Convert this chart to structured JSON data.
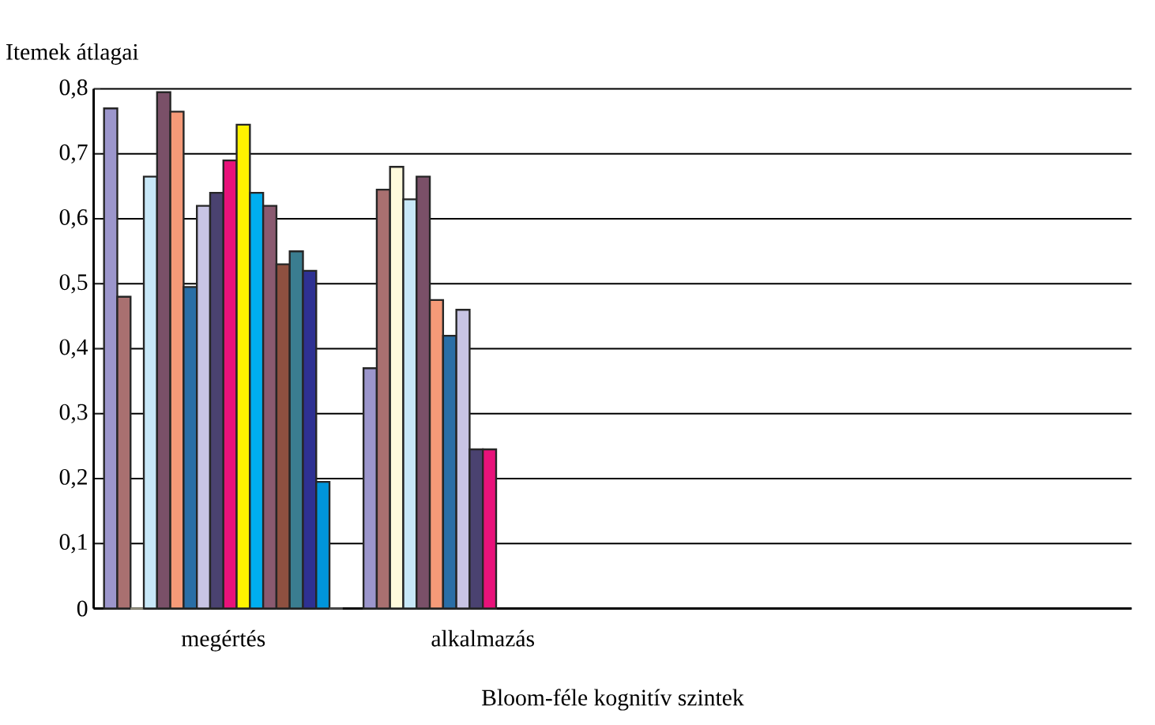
{
  "chart_data": {
    "type": "bar",
    "xlabel": "Bloom-féle kognitív szintek",
    "ylabel": "Itemek átlagai",
    "categories": [
      "megértés",
      "alkalmazás",
      null,
      null
    ],
    "ylim": [
      0,
      0.8
    ],
    "yticks": [
      {
        "value": 0,
        "label": "0"
      },
      {
        "value": 0.1,
        "label": "0,1"
      },
      {
        "value": 0.2,
        "label": "0,2"
      },
      {
        "value": 0.3,
        "label": "0,3"
      },
      {
        "value": 0.4,
        "label": "0,4"
      },
      {
        "value": 0.5,
        "label": "0,5"
      },
      {
        "value": 0.6,
        "label": "0,6"
      },
      {
        "value": 0.7,
        "label": "0,7"
      },
      {
        "value": 0.8,
        "label": "0,8"
      }
    ],
    "grid": "y",
    "series": [
      {
        "color": "#9c96cc",
        "values": [
          0.77,
          0.37,
          null,
          null
        ]
      },
      {
        "color": "#a97070",
        "values": [
          0.48,
          0.645,
          null,
          null
        ]
      },
      {
        "color": "#fffadc",
        "values": [
          0,
          0.68,
          null,
          null
        ]
      },
      {
        "color": "#c8e8f8",
        "values": [
          0.665,
          0.63,
          null,
          null
        ]
      },
      {
        "color": "#7a5068",
        "values": [
          0.795,
          0.665,
          null,
          null
        ]
      },
      {
        "color": "#f59a78",
        "values": [
          0.765,
          0.475,
          null,
          null
        ]
      },
      {
        "color": "#2a6ea6",
        "values": [
          0.495,
          0.42,
          null,
          null
        ]
      },
      {
        "color": "#c8c4e4",
        "values": [
          0.62,
          0.46,
          null,
          null
        ]
      },
      {
        "color": "#4a4270",
        "values": [
          0.64,
          0.245,
          null,
          null
        ]
      },
      {
        "color": "#e8127a",
        "values": [
          0.69,
          0.245,
          null,
          null
        ]
      },
      {
        "color": "#fff200",
        "values": [
          0.745,
          null,
          null,
          null
        ]
      },
      {
        "color": "#00aeef",
        "values": [
          0.64,
          null,
          null,
          null
        ]
      },
      {
        "color": "#8a5a70",
        "values": [
          0.62,
          null,
          null,
          null
        ]
      },
      {
        "color": "#8e5040",
        "values": [
          0.53,
          null,
          null,
          null
        ]
      },
      {
        "color": "#3a7d90",
        "values": [
          0.55,
          null,
          null,
          null
        ]
      },
      {
        "color": "#2e3192",
        "values": [
          0.52,
          null,
          null,
          null
        ]
      },
      {
        "color": "#0095da",
        "values": [
          0.195,
          null,
          null,
          null
        ]
      },
      {
        "color": "#808080",
        "values": [
          0,
          null,
          null,
          null
        ]
      }
    ]
  }
}
